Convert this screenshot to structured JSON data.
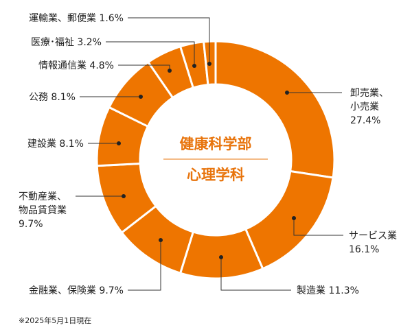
{
  "chart_data": {
    "type": "pie",
    "title": "健康科学部",
    "subtitle": "心理学科",
    "footnote": "※2025年5月1日現在",
    "slice_color": "#ee7500",
    "center_title_color": "#e8740c",
    "slices": [
      {
        "label": "卸売業、小売業",
        "lines": [
          "卸売業、",
          "小売業",
          "27.4%"
        ],
        "value": 27.4
      },
      {
        "label": "サービス業",
        "lines": [
          "サービス業",
          "16.1%"
        ],
        "value": 16.1
      },
      {
        "label": "製造業",
        "lines": [
          "製造業 11.3%"
        ],
        "value": 11.3
      },
      {
        "label": "金融業、保険業",
        "lines": [
          "金融業、保険業 9.7%"
        ],
        "value": 9.7
      },
      {
        "label": "不動産業、物品賃貸業",
        "lines": [
          "不動産業、",
          "物品賃貸業",
          "9.7%"
        ],
        "value": 9.7
      },
      {
        "label": "建設業",
        "lines": [
          "建設業 8.1%"
        ],
        "value": 8.1
      },
      {
        "label": "公務",
        "lines": [
          "公務 8.1%"
        ],
        "value": 8.1
      },
      {
        "label": "情報通信業",
        "lines": [
          "情報通信業 4.8%"
        ],
        "value": 4.8
      },
      {
        "label": "医療・福祉",
        "lines": [
          "医療･福祉 3.2%"
        ],
        "value": 3.2
      },
      {
        "label": "運輸業、郵便業",
        "lines": [
          "運輸業、郵便業 1.6%"
        ],
        "value": 1.6
      }
    ]
  }
}
